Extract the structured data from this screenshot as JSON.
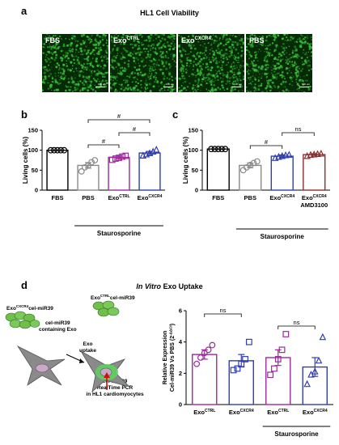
{
  "panel_a": {
    "letter": "a",
    "title": "HL1 Cell Viability",
    "images": [
      {
        "label_main": "FBS",
        "label_sup": "",
        "scale": "100 μm"
      },
      {
        "label_main": "Exo",
        "label_sup": "CTRL",
        "scale": "100 μm"
      },
      {
        "label_main": "Exo",
        "label_sup": "CXCR4",
        "scale": "100 μm"
      },
      {
        "label_main": "PBS",
        "label_sup": "",
        "scale": "100 μm"
      }
    ],
    "fluor_color": "#39c43a"
  },
  "panel_b": {
    "letter": "b"
  },
  "panel_c": {
    "letter": "c"
  },
  "panel_d": {
    "letter": "d",
    "title_italic": "In Vitro",
    "title_rest": " Exo Uptake",
    "diagram": {
      "source1": {
        "main": "Exo",
        "sup": "CXCR4",
        "rest": "cel-miR39"
      },
      "source2": {
        "main": "Exo",
        "sup": "CTRL",
        "rest": "cel-miR39"
      },
      "containing_line1": "cel-miR39",
      "containing_line2": "containing Exo",
      "uptake_line1": "Exo",
      "uptake_line2": "uptake",
      "result_line1": "cel-miR39",
      "result_line2": "RealTime PCR",
      "result_line3": "in HL1 cardiomyocytes"
    }
  },
  "chart_data": [
    {
      "id": "b",
      "type": "bar",
      "ylabel": "Living cells (%)",
      "ylim": [
        0,
        150
      ],
      "yticks": [
        0,
        50,
        100,
        150
      ],
      "categories": [
        {
          "main": "FBS",
          "sup": ""
        },
        {
          "main": "PBS",
          "sup": ""
        },
        {
          "main": "Exo",
          "sup": "CTRL"
        },
        {
          "main": "Exo",
          "sup": "CXCR4"
        }
      ],
      "values": [
        100,
        62,
        82,
        93
      ],
      "errors": [
        0,
        7,
        3,
        4
      ],
      "colors": [
        "#000000",
        "#8a8a8a",
        "#9b2b9b",
        "#2f3fb0"
      ],
      "markers": [
        "circle",
        "circle",
        "square",
        "triangle"
      ],
      "points": [
        [
          100,
          100,
          100,
          100,
          100
        ],
        [
          47,
          57,
          62,
          70,
          75
        ],
        [
          76,
          79,
          81,
          84,
          86
        ],
        [
          86,
          89,
          92,
          96,
          101
        ]
      ],
      "group_label": "Staurosporine",
      "significance": [
        {
          "from": 1,
          "to": 2,
          "label": "#"
        },
        {
          "from": 2,
          "to": 3,
          "label": "#"
        },
        {
          "from": 1,
          "to": 3,
          "label": "#"
        }
      ]
    },
    {
      "id": "c",
      "type": "bar",
      "ylabel": "Living cells (%)",
      "ylim": [
        0,
        150
      ],
      "yticks": [
        0,
        50,
        100,
        150
      ],
      "categories": [
        {
          "main": "FBS",
          "sup": ""
        },
        {
          "main": "PBS",
          "sup": ""
        },
        {
          "main": "Exo",
          "sup": "CXCR4"
        },
        {
          "main": "Exo",
          "sup": "CXCR4",
          "line2": "AMD3100"
        }
      ],
      "values": [
        103,
        62,
        85,
        89
      ],
      "errors": [
        0,
        6,
        3,
        2
      ],
      "colors": [
        "#000000",
        "#8a8a8a",
        "#2f3fb0",
        "#8b2f2f"
      ],
      "markers": [
        "circle",
        "circle",
        "triangle",
        "triangle"
      ],
      "points": [
        [
          103,
          103,
          103,
          103,
          103
        ],
        [
          50,
          57,
          63,
          68,
          72
        ],
        [
          80,
          83,
          85,
          87,
          88
        ],
        [
          85,
          88,
          89,
          90,
          91
        ]
      ],
      "group_label": "Staurosporine",
      "significance": [
        {
          "from": 1,
          "to": 2,
          "label": "#"
        },
        {
          "from": 2,
          "to": 3,
          "label": "ns"
        }
      ]
    },
    {
      "id": "d",
      "type": "bar",
      "ylabel_line1": "Relative Expression",
      "ylabel_line2": "Cel-miR39 Vs PBS (2",
      "ylabel_sup": "-ΔΔCt",
      "ylabel_end": ")",
      "ylim": [
        0,
        6
      ],
      "yticks": [
        0,
        2,
        4,
        6
      ],
      "categories": [
        {
          "main": "Exo",
          "sup": "CTRL"
        },
        {
          "main": "Exo",
          "sup": "CXCR4"
        },
        {
          "main": "Exo",
          "sup": "CTRL"
        },
        {
          "main": "Exo",
          "sup": "CXCR4"
        }
      ],
      "values": [
        3.2,
        2.8,
        3.0,
        2.4
      ],
      "errors": [
        0.3,
        0.4,
        0.5,
        0.6
      ],
      "colors": [
        "#9b2b9b",
        "#2f3fb0",
        "#9b2b9b",
        "#2f3fb0"
      ],
      "markers": [
        "circle",
        "square",
        "square",
        "triangle"
      ],
      "points": [
        [
          2.6,
          3.0,
          3.3,
          3.5,
          3.8
        ],
        [
          2.2,
          2.3,
          2.6,
          2.9,
          4.0
        ],
        [
          1.9,
          2.3,
          2.9,
          3.5,
          4.5
        ],
        [
          1.3,
          1.9,
          2.1,
          2.8,
          4.3
        ]
      ],
      "group_label": "Staurosporine",
      "significance": [
        {
          "from": 0,
          "to": 1,
          "label": "ns"
        },
        {
          "from": 2,
          "to": 3,
          "label": "ns"
        }
      ]
    }
  ]
}
